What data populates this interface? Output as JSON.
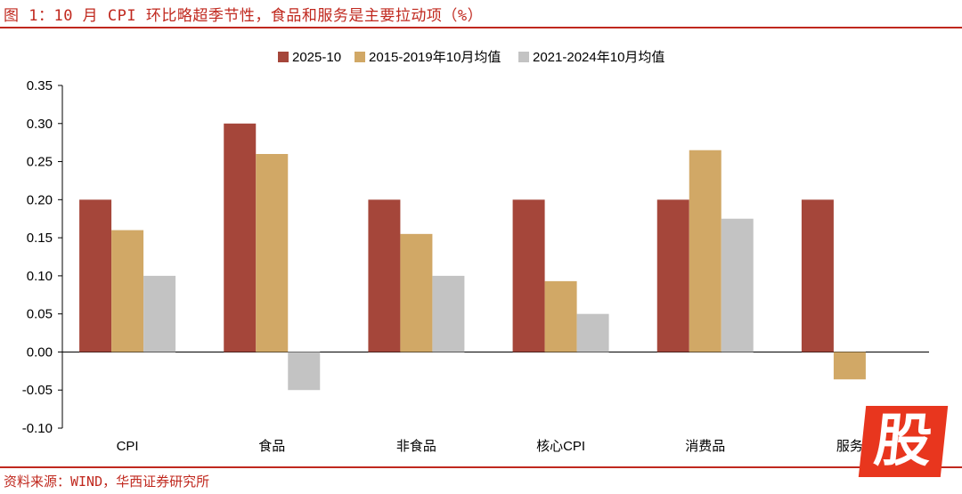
{
  "title": "图 1：10 月 CPI 环比略超季节性，食品和服务是主要拉动项（%）",
  "source": "资料来源：WIND，华西证券研究所",
  "watermark": "股",
  "colors": {
    "accent": "#C0281E",
    "s1": "#A5463A",
    "s2": "#D1A866",
    "s3": "#C3C3C3",
    "axis": "#000000"
  },
  "chart_data": {
    "type": "bar",
    "categories": [
      "CPI",
      "食品",
      "非食品",
      "核心CPI",
      "消费品",
      "服务"
    ],
    "series": [
      {
        "name": "2025-10",
        "values": [
          0.2,
          0.3,
          0.2,
          0.2,
          0.2,
          0.2
        ]
      },
      {
        "name": "2015-2019年10月均值",
        "values": [
          0.16,
          0.26,
          0.155,
          0.093,
          0.265,
          -0.036
        ]
      },
      {
        "name": "2021-2024年10月均值",
        "values": [
          0.1,
          -0.05,
          0.1,
          0.05,
          0.175,
          0.0
        ]
      }
    ],
    "ylim": [
      -0.1,
      0.35
    ],
    "yticks": [
      "0.35",
      "0.30",
      "0.25",
      "0.20",
      "0.15",
      "0.10",
      "0.05",
      "0.00",
      "-0.05",
      "-0.10"
    ],
    "ytick_values": [
      0.35,
      0.3,
      0.25,
      0.2,
      0.15,
      0.1,
      0.05,
      0.0,
      -0.05,
      -0.1
    ],
    "legend_position": "top-center",
    "grid": false
  }
}
